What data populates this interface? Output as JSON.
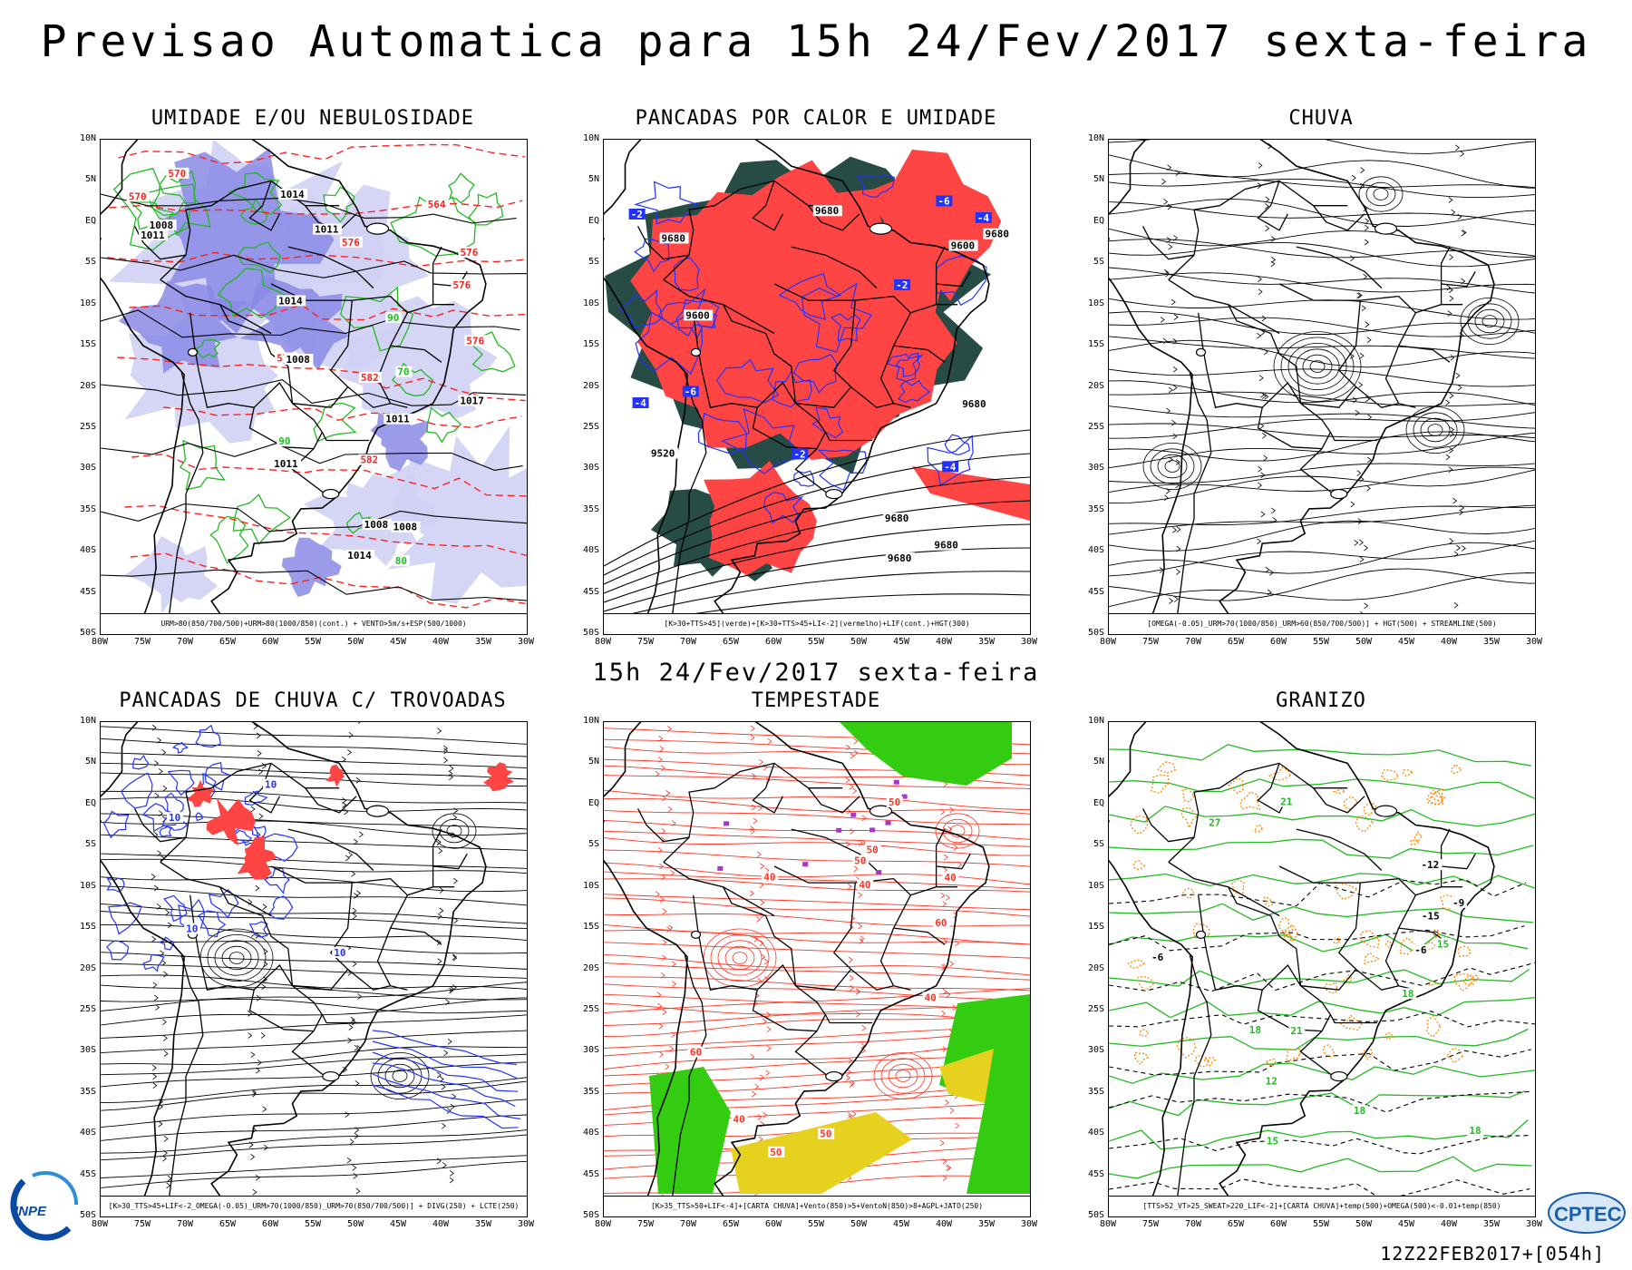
{
  "header": {
    "title": "Previsao Automatica  para 15h 24/Fev/2017 sexta-feira",
    "subtitle": "15h 24/Fev/2017 sexta-feira"
  },
  "axes": {
    "lat_labels": [
      "10N",
      "5N",
      "EQ",
      "5S",
      "10S",
      "15S",
      "20S",
      "25S",
      "30S",
      "35S",
      "40S",
      "45S",
      "50S"
    ],
    "lon_labels": [
      "80W",
      "75W",
      "70W",
      "65W",
      "60W",
      "55W",
      "50W",
      "45W",
      "40W",
      "35W",
      "30W"
    ]
  },
  "panels": [
    {
      "id": "umidade",
      "title": "UMIDADE E/OU NEBULOSIDADE",
      "legend": "URM>80(850/700/500)+URM>80(1000/850)(cont.) + VENTO>5m/s+ESP(500/1000)",
      "contour_labels": [
        "1011",
        "1011",
        "1008",
        "1008",
        "1008",
        "1014",
        "1014",
        "1011",
        "1008",
        "1014",
        "1011",
        "1017",
        "576",
        "576",
        "576",
        "576",
        "582",
        "582",
        "576",
        "570",
        "570",
        "564",
        "90",
        "80",
        "90",
        "70"
      ]
    },
    {
      "id": "pancadas-calor",
      "title": "PANCADAS POR CALOR E UMIDADE",
      "legend": "[K>30+TTS>45](verde)+[K>30+TTS>45+LI<-2](vermelho)+LIF(cont.)+HGT(300)",
      "contour_labels": [
        "9680",
        "9680",
        "9680",
        "9680",
        "9680",
        "9680",
        "9680",
        "9600",
        "9600",
        "9520",
        "-2",
        "-4",
        "-6",
        "-4",
        "-2",
        "-6",
        "-4",
        "-2"
      ]
    },
    {
      "id": "chuva",
      "title": "CHUVA",
      "legend": "[OMEGA(-0.05)_URM>70(1000/850)_URM>60(850/700/500)] + HGT(500) + STREAMLINE(500)",
      "contour_labels": []
    },
    {
      "id": "trovoadas",
      "title": "PANCADAS DE CHUVA C/ TROVOADAS",
      "legend": "[K>30_TTS>45+LIF<-2_OMEGA(-0.05)_URM>70(1000/850)_URM>70(850/700/500)] + DIVG(250) + LCTE(250)",
      "contour_labels": [
        "10",
        "10",
        "10",
        "10"
      ]
    },
    {
      "id": "tempestade",
      "title": "TEMPESTADE",
      "legend": "[K>35_TTS>50+LIF<-4]+[CARTA CHUVA]+Vento(850)>5+VentoN(850)>8+AGPL+JATO(250)",
      "contour_labels": [
        "40",
        "50",
        "40",
        "50",
        "60",
        "50",
        "40",
        "50",
        "40",
        "60",
        "50",
        "40"
      ]
    },
    {
      "id": "granizo",
      "title": "GRANIZO",
      "legend": "[TTS>52_VT>25_SWEAT>220_LIF<-2]+[CARTA CHUVA]+temp(500)+OMEGA(500)<-0.01+temp(850)",
      "contour_labels": [
        "18",
        "15",
        "18",
        "21",
        "18",
        "15",
        "12",
        "-6",
        "-6",
        "-9",
        "-12",
        "-15",
        "27",
        "21",
        "18"
      ]
    }
  ],
  "footer": {
    "run": "12Z22FEB2017+[054h]",
    "logo_left": "INPE",
    "logo_right": "CPTEC"
  },
  "colors": {
    "humidity_fill": "#8a8ae6",
    "humidity_fill_light": "#d0d0f5",
    "green_contour": "#22bb22",
    "red_dashed": "#ff2222",
    "blue_contour": "#2233ff",
    "convective_red": "#ff4444",
    "dark_teal": "#274c46",
    "storm_green": "#33cc11",
    "storm_yellow": "#e6d21e",
    "orange_dots": "#ff8800",
    "stream_red": "#ff3322"
  }
}
